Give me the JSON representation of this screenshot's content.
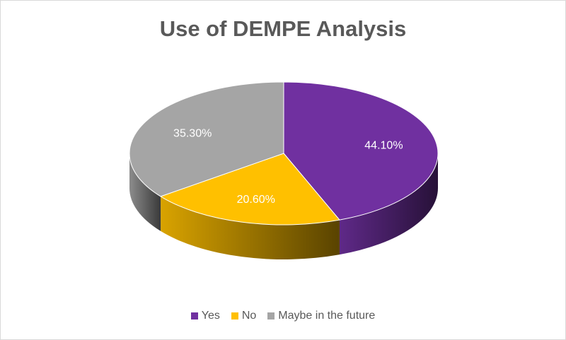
{
  "chart_data": {
    "type": "pie",
    "title": "Use of DEMPE Analysis",
    "categories": [
      "Yes",
      "No",
      "Maybe in the future"
    ],
    "values": [
      44.1,
      20.6,
      35.3
    ],
    "labels": [
      "44.10%",
      "20.60%",
      "35.30%"
    ],
    "colors": [
      "#7030a0",
      "#ffc000",
      "#a5a5a5"
    ],
    "legend": "bottom",
    "style": "3d"
  }
}
